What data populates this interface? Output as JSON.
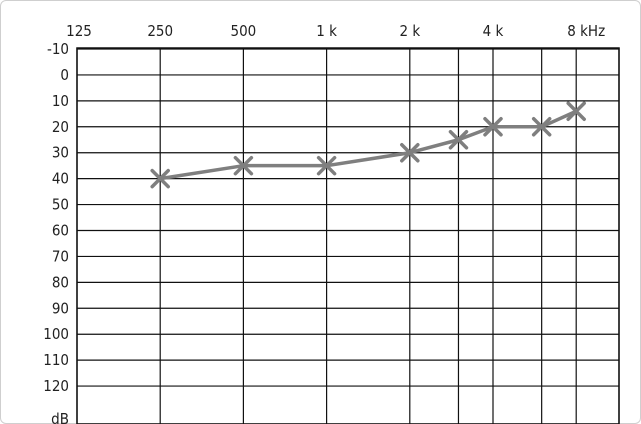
{
  "chart_data": {
    "type": "line",
    "title": "",
    "xlabel": "",
    "ylabel": "",
    "x_scale": "log2",
    "y_inverted": true,
    "grid": true,
    "x_ticks": [
      {
        "freq": 125,
        "label": "125"
      },
      {
        "freq": 250,
        "label": "250"
      },
      {
        "freq": 500,
        "label": "500"
      },
      {
        "freq": 1000,
        "label": "1 k"
      },
      {
        "freq": 2000,
        "label": "2 k"
      },
      {
        "freq": 4000,
        "label": "4 k"
      },
      {
        "freq": 8000,
        "label": "8 kHz"
      }
    ],
    "x_half_octave_gridlines": [
      3000,
      6000
    ],
    "y_ticks": [
      {
        "value": -10,
        "label": "-10"
      },
      {
        "value": 0,
        "label": "0"
      },
      {
        "value": 10,
        "label": "10"
      },
      {
        "value": 20,
        "label": "20"
      },
      {
        "value": 30,
        "label": "30"
      },
      {
        "value": 40,
        "label": "40"
      },
      {
        "value": 50,
        "label": "50"
      },
      {
        "value": 60,
        "label": "60"
      },
      {
        "value": 70,
        "label": "70"
      },
      {
        "value": 80,
        "label": "80"
      },
      {
        "value": 90,
        "label": "90"
      },
      {
        "value": 100,
        "label": "100"
      },
      {
        "value": 110,
        "label": "110"
      },
      {
        "value": 120,
        "label": "120"
      }
    ],
    "y_unit_label": "dB",
    "ylim": [
      -10,
      125
    ],
    "xlim": [
      125,
      11314
    ],
    "series": [
      {
        "marker": "x",
        "color": "#7f7f7f",
        "x": [
          250,
          500,
          1000,
          2000,
          3000,
          4000,
          6000,
          8000
        ],
        "y": [
          40,
          35,
          35,
          30,
          25,
          20,
          20,
          14
        ]
      }
    ]
  }
}
